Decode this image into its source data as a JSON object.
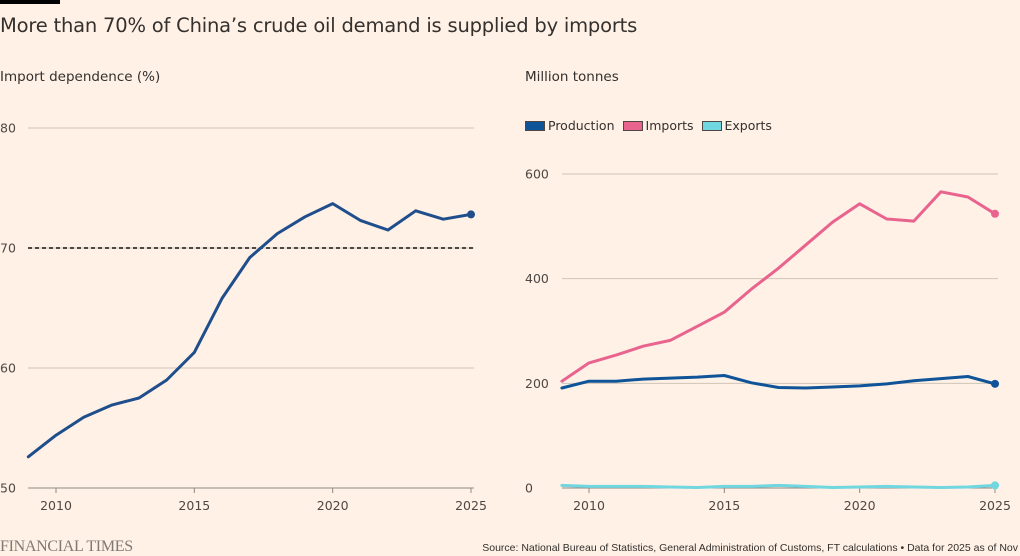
{
  "header": {
    "title": "More than 70% of China’s crude oil demand is supplied by imports"
  },
  "footer": {
    "brand": "FINANCIAL TIMES",
    "source": "Source: National Bureau of Statistics, General Administration of Customs, FT calculations • Data for 2025 as of Nov"
  },
  "chart_data": [
    {
      "type": "line",
      "title": "Import dependence (%)",
      "xlabel": "",
      "ylabel": "Import dependence (%)",
      "x": [
        2009,
        2010,
        2011,
        2012,
        2013,
        2014,
        2015,
        2016,
        2017,
        2018,
        2019,
        2020,
        2021,
        2022,
        2023,
        2024,
        2025
      ],
      "xticks": [
        "2010",
        "2015",
        "2020",
        "2025"
      ],
      "yticks": [
        "50",
        "60",
        "70",
        "80"
      ],
      "ylim": [
        50,
        80
      ],
      "grid": true,
      "reference_line": {
        "value": 70,
        "style": "dashed"
      },
      "series": [
        {
          "name": "Import dependence",
          "color": "#1f4e8c",
          "values": [
            52.6,
            54.4,
            55.9,
            56.9,
            57.5,
            59.0,
            61.3,
            65.8,
            69.2,
            71.2,
            72.6,
            73.7,
            72.3,
            71.5,
            73.1,
            72.4,
            72.8
          ]
        }
      ]
    },
    {
      "type": "line",
      "title": "Million tonnes",
      "xlabel": "",
      "ylabel": "Million tonnes",
      "x": [
        2009,
        2010,
        2011,
        2012,
        2013,
        2014,
        2015,
        2016,
        2017,
        2018,
        2019,
        2020,
        2021,
        2022,
        2023,
        2024,
        2025
      ],
      "xticks": [
        "2010",
        "2015",
        "2020",
        "2025"
      ],
      "yticks": [
        "0",
        "200",
        "400",
        "600"
      ],
      "ylim": [
        0,
        600
      ],
      "grid": true,
      "legend_position": "top-left",
      "series": [
        {
          "name": "Production",
          "color": "#0f5499",
          "values": [
            191,
            204,
            204,
            208,
            210,
            212,
            215,
            201,
            192,
            191,
            193,
            195,
            199,
            205,
            209,
            213,
            199
          ]
        },
        {
          "name": "Imports",
          "color": "#e8648f",
          "values": [
            204,
            239,
            254,
            271,
            282,
            309,
            336,
            380,
            420,
            464,
            508,
            543,
            514,
            510,
            566,
            556,
            524
          ]
        },
        {
          "name": "Exports",
          "color": "#70d6e0",
          "values": [
            5,
            3,
            3,
            3,
            2,
            1,
            3,
            3,
            5,
            3,
            1,
            2,
            3,
            2,
            1,
            2,
            5
          ]
        }
      ]
    }
  ]
}
